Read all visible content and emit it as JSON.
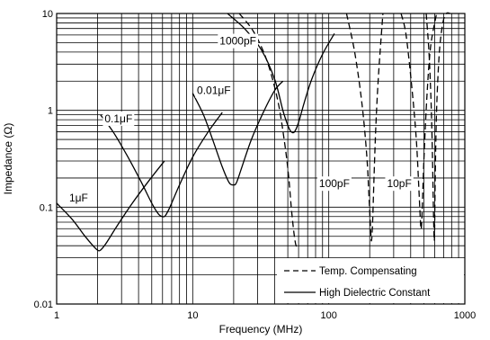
{
  "chart_data": {
    "type": "line",
    "xlabel": "Frequency (MHz)",
    "ylabel": "Impedance (Ω)",
    "x_scale": "log",
    "y_scale": "log",
    "xlim": [
      1,
      1000
    ],
    "ylim": [
      0.01,
      10
    ],
    "grid": true,
    "x_tick_labels": [
      "1",
      "10",
      "100",
      "1000"
    ],
    "y_tick_labels": [
      "0.01",
      "0.1",
      "1",
      "10"
    ],
    "legend": {
      "placement": "bottom-right",
      "entries": [
        {
          "label": "Temp. Compensating",
          "style": "dashed"
        },
        {
          "label": "High Dielectric Constant",
          "style": "solid"
        }
      ]
    },
    "series": [
      {
        "name": "1μF",
        "style": "solid",
        "x": [
          1,
          1.3,
          1.6,
          1.85,
          2.0,
          2.1,
          2.3,
          2.8,
          3.6,
          4.8,
          6.2
        ],
        "y": [
          0.11,
          0.075,
          0.051,
          0.04,
          0.036,
          0.036,
          0.042,
          0.065,
          0.11,
          0.19,
          0.3
        ]
      },
      {
        "name": "0.1μF",
        "style": "solid",
        "x": [
          2.1,
          2.6,
          3.3,
          4.2,
          5.0,
          5.6,
          6.0,
          6.3,
          6.8,
          8.0,
          10.0,
          13.0,
          16.5
        ],
        "y": [
          0.9,
          0.6,
          0.34,
          0.18,
          0.11,
          0.085,
          0.08,
          0.082,
          0.1,
          0.17,
          0.33,
          0.6,
          0.95
        ]
      },
      {
        "name": "0.01μF",
        "style": "solid",
        "x": [
          10.0,
          12.0,
          14.0,
          16.5,
          18.5,
          20.0,
          21.0,
          23.0,
          27.0,
          33.0,
          40.0,
          46.0
        ],
        "y": [
          1.5,
          0.9,
          0.5,
          0.26,
          0.18,
          0.17,
          0.18,
          0.26,
          0.5,
          0.95,
          1.6,
          2.0
        ]
      },
      {
        "name": "1000pF",
        "style": "solid",
        "x": [
          18.0,
          24.0,
          32.0,
          40.0,
          46.0,
          50.0,
          53.0,
          56.0,
          60.0,
          66.0,
          75.0,
          90.0,
          110.0
        ],
        "y": [
          10.0,
          7.0,
          4.2,
          2.1,
          1.0,
          0.7,
          0.6,
          0.6,
          0.75,
          1.2,
          2.1,
          3.8,
          6.2
        ]
      },
      {
        "name": "1000pF",
        "style": "dashed",
        "x": [
          22.0,
          28.0,
          35.0,
          42.0,
          47.0,
          50.5,
          53.0,
          55.0,
          56.5,
          57.5,
          58.0
        ],
        "y": [
          10.0,
          6.5,
          3.3,
          1.3,
          0.5,
          0.22,
          0.1,
          0.06,
          0.045,
          0.04,
          0.04
        ]
      },
      {
        "name": "100pF",
        "style": "dashed",
        "x": [
          135.0,
          155.0,
          175.0,
          190.0,
          198.0,
          203.0,
          206.0,
          210.0,
          215.0,
          222.0,
          232.0,
          250.0
        ],
        "y": [
          10.0,
          4.0,
          1.2,
          0.35,
          0.12,
          0.06,
          0.045,
          0.07,
          0.2,
          0.7,
          2.3,
          10.0
        ]
      },
      {
        "name": "10pF",
        "style": "dashed",
        "x": [
          340.0,
          370.0,
          410.0,
          440.0,
          460.0,
          472.0,
          478.0,
          485.0,
          500.0,
          525.0,
          560.0,
          620.0
        ],
        "y": [
          10.0,
          6.0,
          1.6,
          0.5,
          0.15,
          0.07,
          0.06,
          0.085,
          0.3,
          1.3,
          4.5,
          10.0
        ]
      },
      {
        "name": "10pF",
        "style": "dashed",
        "x": [
          520.0,
          545.0,
          565.0,
          578.0,
          586.0,
          592.0,
          596.0,
          600.0,
          606.0,
          620.0,
          650.0,
          690.0,
          730.0,
          780.0
        ],
        "y": [
          10.0,
          4.0,
          1.2,
          0.35,
          0.12,
          0.06,
          0.045,
          0.06,
          0.2,
          1.0,
          4.0,
          8.0,
          10.0,
          10.0
        ]
      }
    ],
    "annotations": [
      {
        "text": "1μF",
        "x": 1.45,
        "y": 0.125
      },
      {
        "text": "0.1μF",
        "x": 2.85,
        "y": 0.82
      },
      {
        "text": "0.01μF",
        "x": 14.3,
        "y": 1.6
      },
      {
        "text": "1000pF",
        "x": 21.5,
        "y": 5.2
      },
      {
        "text": "100pF",
        "x": 110.0,
        "y": 0.175
      },
      {
        "text": "10pF",
        "x": 330.0,
        "y": 0.175
      }
    ]
  }
}
